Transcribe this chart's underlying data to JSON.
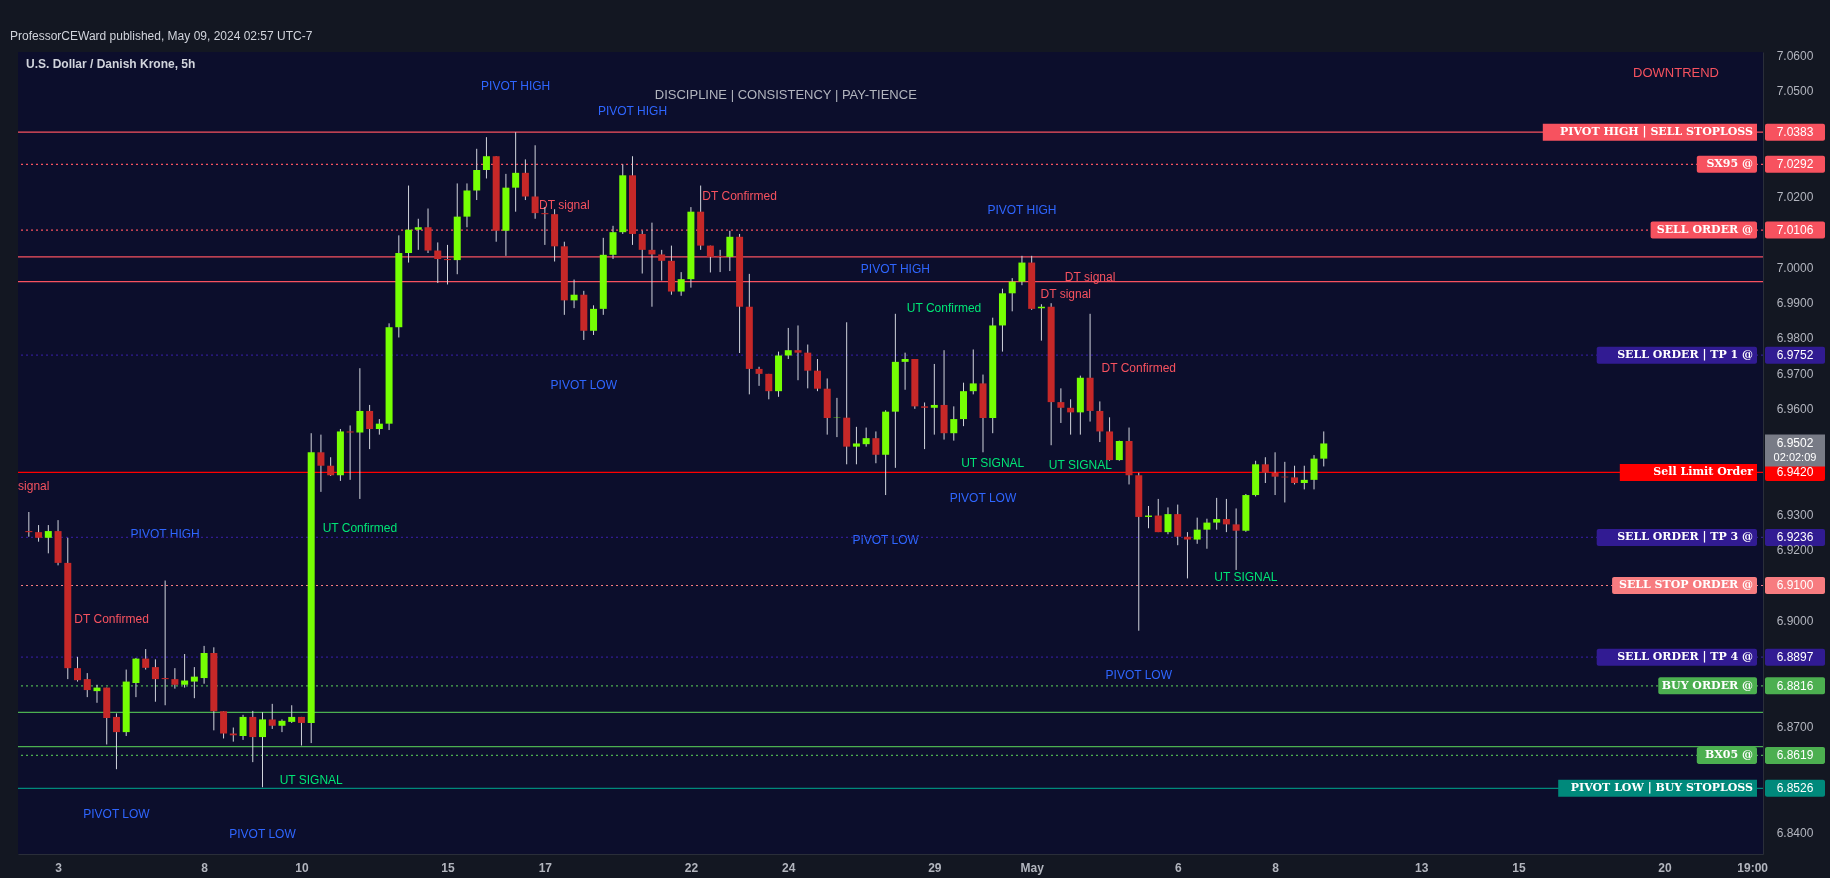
{
  "chart_data": {
    "type": "candlestick",
    "title": "U.S. Dollar / Danish Krone, 5h",
    "categories": [
      null,
      null,
      null,
      "3",
      null,
      null,
      null,
      null,
      null,
      null,
      null,
      null,
      null,
      null,
      null,
      null,
      null,
      null,
      "8",
      null,
      null,
      null,
      null,
      null,
      null,
      null,
      null,
      null,
      "10",
      null,
      null,
      null,
      null,
      null,
      null,
      null,
      null,
      null,
      null,
      null,
      null,
      null,
      null,
      "15",
      null,
      null,
      null,
      null,
      null,
      null,
      null,
      null,
      null,
      "17",
      null,
      null,
      null,
      null,
      null,
      null,
      null,
      null,
      null,
      null,
      null,
      null,
      null,
      null,
      "22",
      null,
      null,
      null,
      null,
      null,
      null,
      null,
      null,
      null,
      "24",
      null,
      null,
      null,
      null,
      null,
      null,
      null,
      null,
      null,
      null,
      null,
      null,
      null,
      null,
      "29",
      null,
      null,
      null,
      null,
      null,
      null,
      null,
      null,
      null,
      "May",
      null,
      null,
      null,
      null,
      null,
      null,
      null,
      null,
      null,
      null,
      null,
      null,
      null,
      null,
      "6",
      null,
      null,
      null,
      null,
      null,
      null,
      null,
      null,
      null,
      "8",
      null,
      null,
      null,
      null,
      null,
      null,
      null,
      null,
      null,
      null,
      null,
      null,
      null,
      null,
      "13",
      null,
      null,
      null,
      null,
      null,
      null,
      null,
      null,
      null,
      "15",
      null,
      null,
      null,
      null,
      null,
      null,
      null,
      null,
      null,
      null,
      null,
      null,
      null,
      null,
      "20",
      null,
      null,
      null,
      null,
      null,
      null,
      null,
      null,
      "19:00"
    ],
    "ohlc": [
      [
        6.9254,
        6.9308,
        6.9238,
        6.9251
      ],
      [
        6.9251,
        6.9271,
        6.9224,
        6.9235
      ],
      [
        6.9235,
        6.9271,
        6.9191,
        6.9254
      ],
      [
        6.9254,
        6.9285,
        6.9157,
        6.9164
      ],
      [
        6.9164,
        6.9235,
        6.8835,
        6.8866
      ],
      [
        6.8866,
        6.8898,
        6.8828,
        6.8832
      ],
      [
        6.8835,
        6.8852,
        6.8784,
        6.8804
      ],
      [
        6.8801,
        6.8819,
        6.8768,
        6.8811
      ],
      [
        6.8811,
        6.8811,
        6.865,
        6.8725
      ],
      [
        6.8728,
        6.8738,
        6.858,
        6.8685
      ],
      [
        6.8685,
        6.8862,
        6.8674,
        6.8828
      ],
      [
        6.8824,
        6.8895,
        6.8784,
        6.8893
      ],
      [
        6.8893,
        6.892,
        6.8862,
        6.8867
      ],
      [
        6.8869,
        6.8891,
        6.8771,
        6.8835
      ],
      [
        6.8838,
        6.9114,
        6.8761,
        6.8835
      ],
      [
        6.8835,
        6.8866,
        6.8808,
        6.8819
      ],
      [
        6.8819,
        6.8906,
        6.8811,
        6.8831
      ],
      [
        6.8828,
        6.8869,
        6.8781,
        6.8842
      ],
      [
        6.8838,
        6.8929,
        6.8822,
        6.8909
      ],
      [
        6.8909,
        6.8925,
        6.869,
        6.8744
      ],
      [
        6.8744,
        6.8744,
        6.8667,
        6.8681
      ],
      [
        6.8681,
        6.8698,
        6.8658,
        6.8676
      ],
      [
        6.8674,
        6.8734,
        6.8663,
        6.8728
      ],
      [
        6.8728,
        6.8745,
        6.86,
        6.8671
      ],
      [
        6.8671,
        6.8741,
        6.8529,
        6.8721
      ],
      [
        6.8721,
        6.8765,
        6.8694,
        6.8703
      ],
      [
        6.8703,
        6.8721,
        6.8685,
        6.8717
      ],
      [
        6.8714,
        6.8761,
        6.8711,
        6.8728
      ],
      [
        6.8728,
        6.8728,
        6.8647,
        6.8711
      ],
      [
        6.8711,
        6.9531,
        6.8654,
        6.9477
      ],
      [
        6.9477,
        6.9527,
        6.9365,
        6.9439
      ],
      [
        6.9439,
        6.9463,
        6.941,
        6.9412
      ],
      [
        6.9412,
        6.9543,
        6.9396,
        6.9536
      ],
      [
        6.9536,
        6.9553,
        6.9399,
        6.9533
      ],
      [
        6.9533,
        6.9715,
        6.9345,
        6.9594
      ],
      [
        6.9594,
        6.9611,
        6.9486,
        6.9543
      ],
      [
        6.9543,
        6.9571,
        6.9527,
        6.9558
      ],
      [
        6.9558,
        6.9842,
        6.954,
        6.9831
      ],
      [
        6.9831,
        7.0091,
        6.9802,
        7.0041
      ],
      [
        7.0041,
        7.0232,
        7.0014,
        7.0107
      ],
      [
        7.0107,
        7.0138,
        7.005,
        7.0114
      ],
      [
        7.0114,
        7.0167,
        7.0041,
        7.0048
      ],
      [
        7.0048,
        7.0071,
        6.9956,
        7.0024
      ],
      [
        7.0024,
        7.0064,
        6.9952,
        7.0021
      ],
      [
        7.0021,
        7.0238,
        6.9981,
        7.0144
      ],
      [
        7.0144,
        7.0238,
        7.0114,
        7.0218
      ],
      [
        7.0218,
        7.0336,
        7.0191,
        7.0276
      ],
      [
        7.0276,
        7.0369,
        7.0252,
        7.0315
      ],
      [
        7.0315,
        7.0315,
        7.0073,
        7.0104
      ],
      [
        7.0104,
        7.0265,
        7.0033,
        7.0226
      ],
      [
        7.0226,
        7.0383,
        7.0158,
        7.0268
      ],
      [
        7.0268,
        7.0306,
        7.0191,
        7.0201
      ],
      [
        7.0201,
        7.0346,
        7.0138,
        7.0154
      ],
      [
        7.0154,
        7.0171,
        7.0064,
        7.0151
      ],
      [
        7.0151,
        7.0165,
        7.0017,
        7.006
      ],
      [
        7.006,
        7.0073,
        6.9866,
        6.9907
      ],
      [
        6.9907,
        6.9966,
        6.9885,
        6.9923
      ],
      [
        6.9923,
        6.9934,
        6.9795,
        6.9821
      ],
      [
        6.9821,
        6.9893,
        6.9809,
        6.9883
      ],
      [
        6.9883,
        7.0084,
        6.9866,
        7.0036
      ],
      [
        7.0036,
        7.0118,
        7.0024,
        7.01
      ],
      [
        7.01,
        7.0292,
        7.0095,
        7.0261
      ],
      [
        7.0261,
        7.0315,
        7.0064,
        7.0095
      ],
      [
        7.0095,
        7.0104,
        6.9983,
        7.005
      ],
      [
        7.005,
        7.0127,
        6.9889,
        7.0037
      ],
      [
        7.0037,
        7.005,
        6.9963,
        7.0019
      ],
      [
        7.0019,
        7.0062,
        6.9923,
        6.9932
      ],
      [
        6.9932,
        6.9987,
        6.992,
        6.9967
      ],
      [
        6.9967,
        7.0171,
        6.9943,
        7.0158
      ],
      [
        7.0158,
        7.0232,
        7.005,
        7.0062
      ],
      [
        7.0062,
        7.0062,
        6.9986,
        7.003
      ],
      [
        7.0033,
        7.005,
        6.9987,
        7.003
      ],
      [
        7.003,
        7.0104,
        6.999,
        7.0087
      ],
      [
        7.0087,
        7.0095,
        6.9758,
        6.9889
      ],
      [
        6.9889,
        6.9982,
        6.9641,
        6.9713
      ],
      [
        6.9713,
        6.9719,
        6.9665,
        6.9699
      ],
      [
        6.9699,
        6.9699,
        6.9627,
        6.965
      ],
      [
        6.965,
        6.9762,
        6.9634,
        6.9751
      ],
      [
        6.9751,
        6.9829,
        6.9741,
        6.9766
      ],
      [
        6.9766,
        6.9836,
        6.9681,
        6.9759
      ],
      [
        6.9759,
        6.9782,
        6.9658,
        6.9708
      ],
      [
        6.9708,
        6.9741,
        6.965,
        6.9657
      ],
      [
        6.9657,
        6.9686,
        6.9527,
        6.9574
      ],
      [
        6.9574,
        6.9631,
        6.952,
        6.9575
      ],
      [
        6.9575,
        6.9845,
        6.9443,
        6.9493
      ],
      [
        6.9493,
        6.9549,
        6.9443,
        6.9502
      ],
      [
        6.95,
        6.9547,
        6.9493,
        6.9517
      ],
      [
        6.9517,
        6.9536,
        6.9446,
        6.947
      ],
      [
        6.947,
        6.9596,
        6.9356,
        6.9592
      ],
      [
        6.9592,
        6.9869,
        6.9433,
        6.9733
      ],
      [
        6.9733,
        6.9759,
        6.9654,
        6.9741
      ],
      [
        6.9741,
        6.9741,
        6.96,
        6.9607
      ],
      [
        6.9607,
        6.9618,
        6.9486,
        6.9603
      ],
      [
        6.9603,
        6.9727,
        6.9527,
        6.9611
      ],
      [
        6.9611,
        6.9766,
        6.9513,
        6.9531
      ],
      [
        6.9531,
        6.9607,
        6.951,
        6.9571
      ],
      [
        6.9571,
        6.9674,
        6.9551,
        6.965
      ],
      [
        6.965,
        6.9768,
        6.9641,
        6.9672
      ],
      [
        6.9672,
        6.9697,
        6.9477,
        6.9574
      ],
      [
        6.9574,
        6.9858,
        6.9531,
        6.9836
      ],
      [
        6.9836,
        6.994,
        6.9762,
        6.9927
      ],
      [
        6.9927,
        6.997,
        6.9876,
        6.996
      ],
      [
        6.996,
        7.0033,
        6.995,
        7.0014
      ],
      [
        7.0014,
        7.0033,
        6.988,
        6.9883
      ],
      [
        6.9885,
        6.9896,
        6.9793,
        6.9889
      ],
      [
        6.9889,
        6.9899,
        6.9497,
        6.9619
      ],
      [
        6.9619,
        6.9658,
        6.956,
        6.9603
      ],
      [
        6.9603,
        6.9627,
        6.9527,
        6.959
      ],
      [
        6.959,
        6.9694,
        6.9527,
        6.9688
      ],
      [
        6.9688,
        6.9869,
        6.9564,
        6.9594
      ],
      [
        6.9594,
        6.9621,
        6.9506,
        6.9536
      ],
      [
        6.9536,
        6.9576,
        6.9453,
        6.9455
      ],
      [
        6.9455,
        6.951,
        6.9453,
        6.9509
      ],
      [
        6.9509,
        6.9547,
        6.9386,
        6.9412
      ],
      [
        6.9412,
        6.9419,
        6.8972,
        6.9294
      ],
      [
        6.9294,
        6.9325,
        6.9262,
        6.9298
      ],
      [
        6.9298,
        6.9345,
        6.9251,
        6.9251
      ],
      [
        6.9251,
        6.9321,
        6.9245,
        6.9302
      ],
      [
        6.9302,
        6.9329,
        6.9214,
        6.9238
      ],
      [
        6.9238,
        6.9251,
        6.912,
        6.923
      ],
      [
        6.923,
        6.9292,
        6.9218,
        6.9258
      ],
      [
        6.9258,
        6.9289,
        6.9204,
        6.9278
      ],
      [
        6.9278,
        6.9348,
        6.9258,
        6.9288
      ],
      [
        6.9288,
        6.9345,
        6.9251,
        6.9273
      ],
      [
        6.9273,
        6.9318,
        6.9144,
        6.9255
      ],
      [
        6.9255,
        6.9359,
        6.9252,
        6.9356
      ],
      [
        6.9356,
        6.9453,
        6.9352,
        6.9443
      ],
      [
        6.9443,
        6.9463,
        6.939,
        6.9419
      ],
      [
        6.9419,
        6.9477,
        6.9356,
        6.9408
      ],
      [
        6.9408,
        6.945,
        6.9335,
        6.9406
      ],
      [
        6.9406,
        6.9439,
        6.9386,
        6.939
      ],
      [
        6.939,
        6.9439,
        6.9372,
        6.9399
      ],
      [
        6.9399,
        6.9469,
        6.9372,
        6.9459
      ],
      [
        6.9459,
        6.9536,
        6.9437,
        6.9502
      ],
      null,
      null,
      null,
      null,
      null,
      null,
      null,
      null,
      null,
      null,
      null,
      null,
      null,
      null,
      null,
      null,
      null,
      null,
      null,
      null,
      null,
      null,
      null,
      null,
      null,
      null,
      null,
      null,
      null,
      null,
      null,
      null,
      null,
      null,
      null,
      null,
      null,
      null,
      null,
      null,
      null,
      null,
      null,
      null
    ],
    "ylim": [
      6.834,
      7.061
    ],
    "yticks": [
      {
        "value": 6.84,
        "label": "6.8400"
      },
      {
        "value": 6.87,
        "label": "6.8700"
      },
      {
        "value": 6.9,
        "label": "6.9000"
      },
      {
        "value": 6.92,
        "label": "6.9200"
      },
      {
        "value": 6.93,
        "label": "6.9300"
      },
      {
        "value": 6.96,
        "label": "6.9600"
      },
      {
        "value": 6.97,
        "label": "6.9700"
      },
      {
        "value": 6.98,
        "label": "6.9800"
      },
      {
        "value": 6.99,
        "label": "6.9900"
      },
      {
        "value": 7.0,
        "label": "7.0000"
      },
      {
        "value": 7.02,
        "label": "7.0200"
      },
      {
        "value": 7.05,
        "label": "7.0500"
      },
      {
        "value": 7.06,
        "label": "7.0600"
      },
      7.0383,
      7.0292,
      7.0106,
      6.9752,
      6.9502,
      {
        "value": 6.942,
        "label": "6.9420"
      },
      6.9236,
      {
        "value": 6.91,
        "label": "6.9100"
      },
      6.8897,
      6.8816,
      6.8619,
      6.8526
    ],
    "ref_lines": [
      {
        "axis": "y",
        "value": 7.0383,
        "label": "PIVOT HIGH | SELL STOPLOSS",
        "color": "#f7525f",
        "line_style": "solid"
      },
      {
        "axis": "y",
        "value": 7.0292,
        "label": "SX95 @",
        "color": "#f7525f",
        "line_style": "dotted"
      },
      {
        "axis": "y",
        "value": 7.0106,
        "label": "SELL ORDER @",
        "color": "#f7525f",
        "line_style": "dotted"
      },
      {
        "axis": "y",
        "value": 6.9752,
        "label": "SELL ORDER | TP 1 @",
        "color": "#311b92",
        "line_style": "dotted"
      },
      {
        "axis": "y",
        "value": 6.942,
        "label": "Sell Limit Order",
        "color": "#ff0000",
        "line_style": "solid"
      },
      {
        "axis": "y",
        "value": 6.9236,
        "label": "SELL ORDER | TP 3 @",
        "color": "#311b92",
        "line_style": "dotted"
      },
      {
        "axis": "y",
        "value": 6.91,
        "label": "SELL STOP ORDER @",
        "color": "#f77c80",
        "line_style": "dotted"
      },
      {
        "axis": "y",
        "value": 6.8897,
        "label": "SELL ORDER | TP 4 @",
        "color": "#311b92",
        "line_style": "dotted"
      },
      {
        "axis": "y",
        "value": 6.8816,
        "label": "BUY ORDER @",
        "color": "#4caf50",
        "line_style": "dotted"
      },
      {
        "axis": "y",
        "value": 6.8619,
        "label": "BX05 @",
        "color": "#4caf50",
        "line_style": "dotted"
      },
      {
        "axis": "y",
        "value": 6.8526,
        "label": "PIVOT LOW | BUY STOPLOSS",
        "color": "#00897b",
        "line_style": "solid"
      },
      {
        "axis": "y",
        "value": 7.003,
        "color": "#f7525f",
        "line_style": "solid"
      },
      {
        "axis": "y",
        "value": 6.996,
        "color": "#f7525f",
        "line_style": "solid"
      },
      {
        "axis": "y",
        "value": 6.8741,
        "color": "#4caf50",
        "line_style": "solid"
      },
      {
        "axis": "y",
        "value": 6.8644,
        "color": "#4caf50",
        "line_style": "solid"
      }
    ],
    "annotations": [
      "ProfessorCEWard published, May 09, 2024 02:57 UTC-7",
      "DISCIPLINE | CONSISTENCY | PAY-TIENCE",
      "DOWNTREND",
      "02:02:09",
      "signal",
      "DT Confirmed",
      "PIVOT HIGH",
      "PIVOT LOW",
      "PIVOT LOW",
      "UT SIGNAL",
      "UT Confirmed",
      "PIVOT HIGH",
      "PIVOT HIGH",
      "DT signal",
      "PIVOT LOW",
      "DT Confirmed",
      "PIVOT HIGH",
      "PIVOT LOW",
      "PIVOT HIGH",
      "DT signal",
      "UT Confirmed",
      "DT signal",
      "DT Confirmed",
      "UT SIGNAL",
      "PIVOT LOW",
      "UT SIGNAL",
      "PIVOT LOW",
      "UT SIGNAL"
    ],
    "grid": false
  }
}
